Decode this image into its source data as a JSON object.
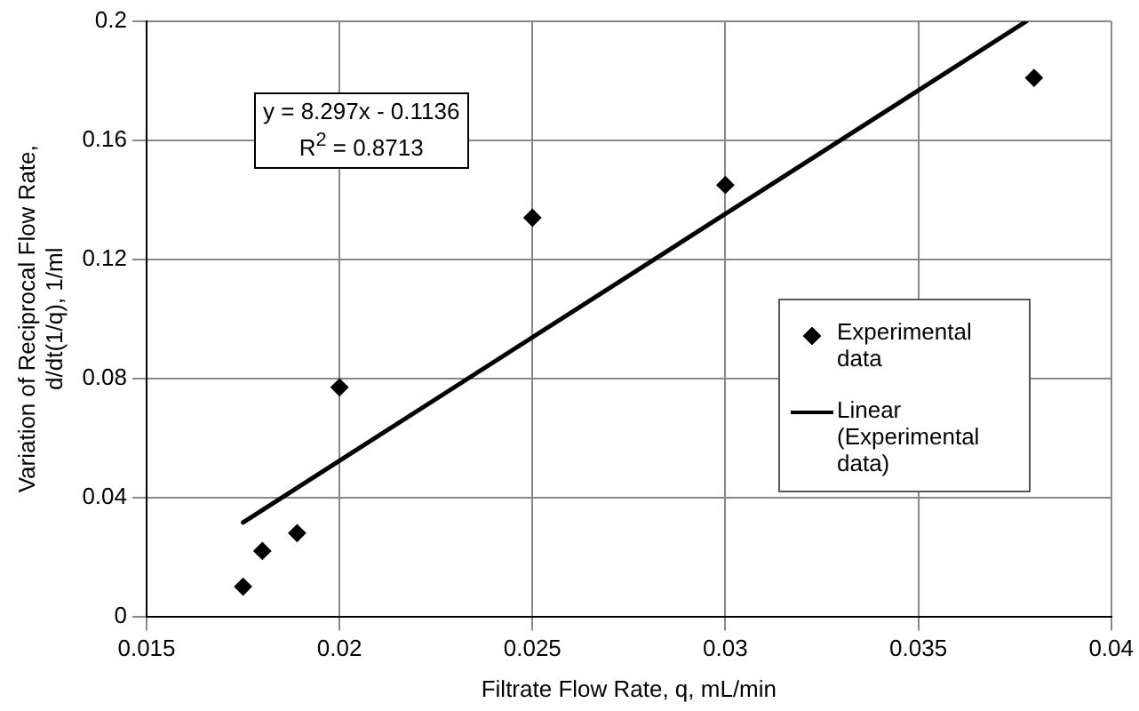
{
  "chart_data": {
    "type": "scatter",
    "xlabel": "Filtrate Flow Rate, q, mL/min",
    "ylabel": "Variation of Reciprocal Flow Rate,\nd/dt(1/q), 1/ml",
    "series": [
      {
        "name": "Experimental data",
        "type": "scatter",
        "color": "#000000",
        "marker": "diamond",
        "x": [
          0.0175,
          0.018,
          0.0189,
          0.02,
          0.025,
          0.03,
          0.038
        ],
        "values": [
          0.01,
          0.022,
          0.028,
          0.077,
          0.134,
          0.145,
          0.181
        ]
      },
      {
        "name": "Linear (Experimental data)",
        "type": "line",
        "color": "#000000",
        "marker": "none",
        "line_style": "solid",
        "x": [
          0.0175,
          0.0378
        ],
        "values": [
          0.0316,
          0.2
        ]
      }
    ],
    "xlim": [
      0.015,
      0.04
    ],
    "xticks": [
      0.015,
      0.02,
      0.025,
      0.03,
      0.035,
      0.04
    ],
    "ylim": [
      0,
      0.2
    ],
    "yticks": [
      0,
      0.04,
      0.08,
      0.12,
      0.16,
      0.2
    ],
    "grid": true,
    "legend": "right",
    "annotations": [
      "y = 8.297x - 0.1136",
      "R$^{2}$ = 0.8713"
    ]
  }
}
